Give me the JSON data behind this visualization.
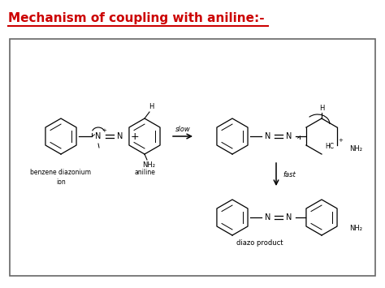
{
  "title": "Mechanism of coupling with aniline:-",
  "title_color": "#cc0000",
  "title_fontsize": 11,
  "bg_color": "#ffffff",
  "box_color": "#666666",
  "text_color": "#000000",
  "fig_width": 4.74,
  "fig_height": 3.55,
  "dpi": 100,
  "label_benzene_diazonium": "benzene diazonium\nion",
  "label_aniline": "aniline",
  "label_slow": "slow",
  "label_fast": "fast",
  "label_diazo": "diazo product"
}
